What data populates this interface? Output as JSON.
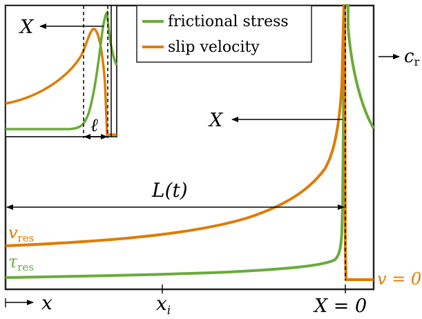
{
  "colors": {
    "frictional_stress": "#6aab3a",
    "slip_velocity": "#e07b00",
    "frame": "#222222",
    "arrow": "#000000"
  },
  "legend": {
    "items": [
      {
        "label": "frictional stress",
        "color_key": "frictional_stress"
      },
      {
        "label": "slip velocity",
        "color_key": "slip_velocity"
      }
    ]
  },
  "labels": {
    "X_inset": "X",
    "X_main": "X",
    "c": "c",
    "c_sub": "r",
    "ell": "ℓ",
    "L": "L(t)",
    "v_res_v": "v",
    "v_res_sub": "res",
    "tau_res_tau": "τ",
    "tau_res_sub": "res",
    "v_zero": "v = 0",
    "x_axis": "x",
    "x_i": "x",
    "x_i_sub": "i",
    "X_zero": "X = 0"
  }
}
